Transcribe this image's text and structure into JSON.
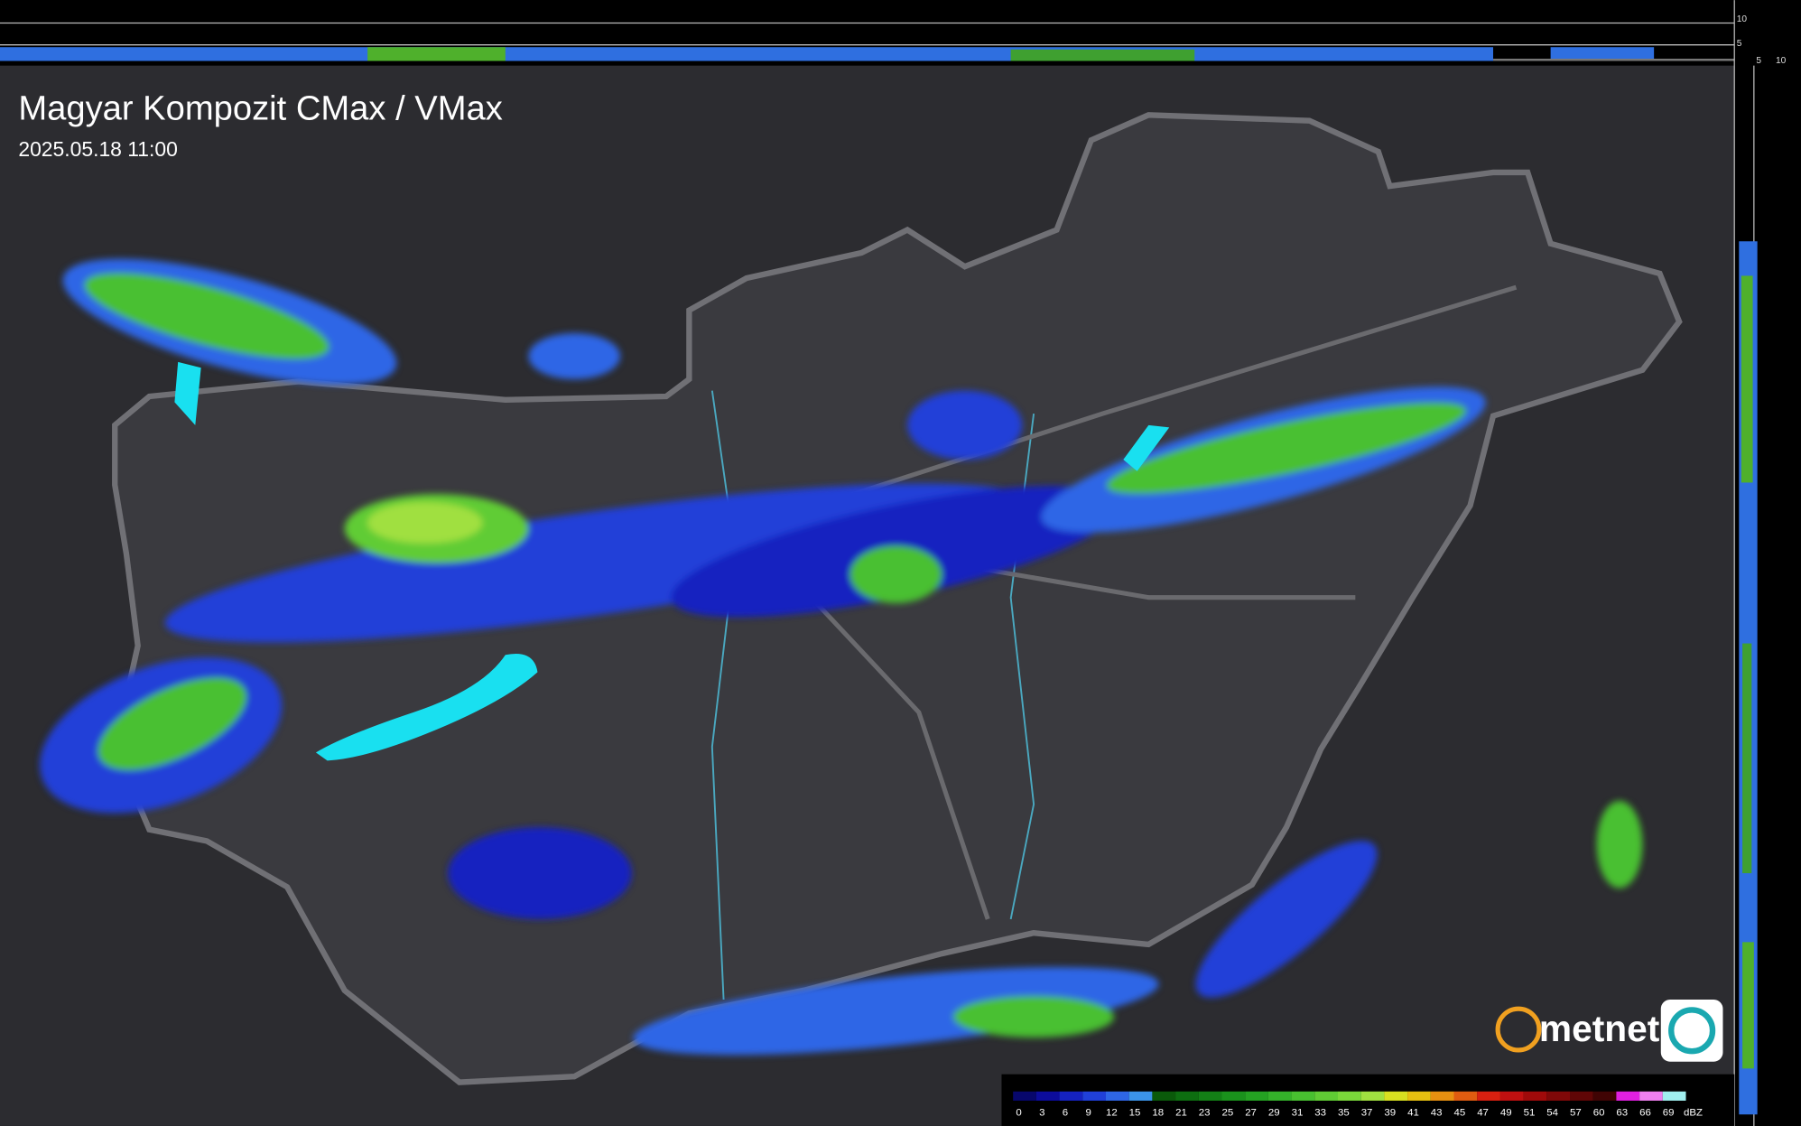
{
  "header": {
    "title": "Magyar Kompozit CMax / VMax",
    "timestamp": "2025.05.18 11:00"
  },
  "profile_labels": {
    "top": [
      "10",
      "5"
    ],
    "side": [
      "5",
      "10"
    ]
  },
  "logo": {
    "text": "metnet"
  },
  "legend": {
    "unit": "dBZ",
    "items": [
      {
        "label": "0",
        "color": "#07076c"
      },
      {
        "label": "3",
        "color": "#0c0c9c"
      },
      {
        "label": "6",
        "color": "#1522c0"
      },
      {
        "label": "9",
        "color": "#2040d8"
      },
      {
        "label": "12",
        "color": "#2e66e6"
      },
      {
        "label": "15",
        "color": "#3b93ea"
      },
      {
        "label": "18",
        "color": "#0a5a0a"
      },
      {
        "label": "21",
        "color": "#0d6e10"
      },
      {
        "label": "23",
        "color": "#138016"
      },
      {
        "label": "25",
        "color": "#1a921c"
      },
      {
        "label": "27",
        "color": "#24a222"
      },
      {
        "label": "29",
        "color": "#34b22a"
      },
      {
        "label": "31",
        "color": "#48c030"
      },
      {
        "label": "33",
        "color": "#60cc34"
      },
      {
        "label": "35",
        "color": "#7ad83a"
      },
      {
        "label": "37",
        "color": "#a0e040"
      },
      {
        "label": "39",
        "color": "#d8e020"
      },
      {
        "label": "41",
        "color": "#e8c010"
      },
      {
        "label": "43",
        "color": "#e89010"
      },
      {
        "label": "45",
        "color": "#e05c10"
      },
      {
        "label": "47",
        "color": "#d82010"
      },
      {
        "label": "49",
        "color": "#c01010"
      },
      {
        "label": "51",
        "color": "#a00a0a"
      },
      {
        "label": "54",
        "color": "#800808"
      },
      {
        "label": "57",
        "color": "#600606"
      },
      {
        "label": "60",
        "color": "#400404"
      },
      {
        "label": "63",
        "color": "#e020e0"
      },
      {
        "label": "66",
        "color": "#f080f0"
      },
      {
        "label": "69",
        "color": "#a0f0f0"
      }
    ]
  }
}
